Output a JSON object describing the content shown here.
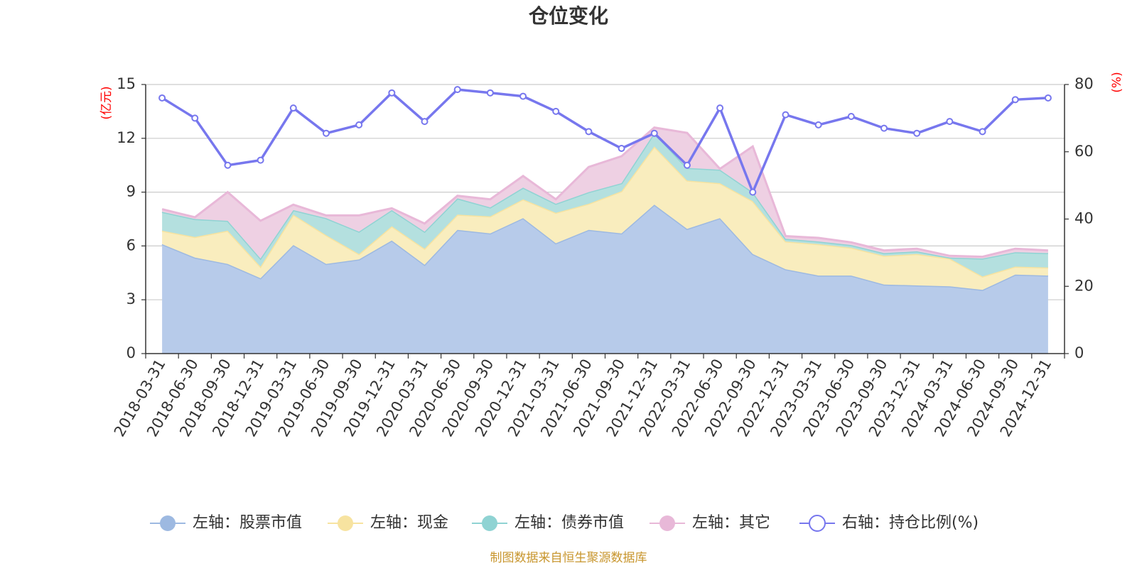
{
  "chart_data": {
    "type": "area",
    "title": "仓位变化",
    "left_axis_unit": "(亿元)",
    "right_axis_unit": "(%)",
    "left_ylim": [
      0,
      15
    ],
    "left_ticks": [
      0,
      3,
      6,
      9,
      12,
      15
    ],
    "right_ylim": [
      0,
      80
    ],
    "right_ticks": [
      0,
      20,
      40,
      60,
      80
    ],
    "categories": [
      "2018-03-31",
      "2018-06-30",
      "2018-09-30",
      "2018-12-31",
      "2019-03-31",
      "2019-06-30",
      "2019-09-30",
      "2019-12-31",
      "2020-03-31",
      "2020-06-30",
      "2020-09-30",
      "2020-12-31",
      "2021-03-31",
      "2021-06-30",
      "2021-09-30",
      "2021-12-31",
      "2022-03-31",
      "2022-06-30",
      "2022-09-30",
      "2022-12-31",
      "2023-03-31",
      "2023-06-30",
      "2023-09-30",
      "2023-12-31",
      "2024-03-31",
      "2024-06-30",
      "2024-09-30",
      "2024-12-31"
    ],
    "stacked_series": [
      {
        "name": "左轴：股票市值",
        "color": "#9db9e1",
        "fill": "#b7cbea",
        "values": [
          6.1,
          5.35,
          5.0,
          4.2,
          6.05,
          5.0,
          5.25,
          6.3,
          4.95,
          6.9,
          6.7,
          7.55,
          6.15,
          6.9,
          6.7,
          8.3,
          6.95,
          7.55,
          5.55,
          4.7,
          4.35,
          4.35,
          3.85,
          3.8,
          3.75,
          3.55,
          4.4,
          4.35
        ]
      },
      {
        "name": "左轴：现金",
        "color": "#f7e3a0",
        "fill": "#f9edbe",
        "values": [
          0.75,
          1.15,
          1.85,
          0.65,
          1.7,
          1.6,
          0.3,
          0.8,
          0.9,
          0.85,
          0.95,
          1.05,
          1.7,
          1.45,
          2.35,
          3.25,
          2.7,
          1.95,
          2.95,
          1.55,
          1.75,
          1.55,
          1.6,
          1.75,
          1.55,
          0.75,
          0.45,
          0.45
        ]
      },
      {
        "name": "左轴：债券市值",
        "color": "#8fd3d3",
        "fill": "#b4e0df",
        "values": [
          1.05,
          1.0,
          0.55,
          0.45,
          0.25,
          0.95,
          1.25,
          0.9,
          0.95,
          0.9,
          0.5,
          0.65,
          0.5,
          0.65,
          0.45,
          0.75,
          0.7,
          0.75,
          0.5,
          0.15,
          0.15,
          0.15,
          0.15,
          0.15,
          0.05,
          1.0,
          0.8,
          0.8
        ]
      },
      {
        "name": "左轴：其它",
        "color": "#e8b8d8",
        "fill": "#eed0e3",
        "values": [
          0.15,
          0.1,
          1.6,
          2.1,
          0.3,
          0.15,
          0.9,
          0.1,
          0.45,
          0.15,
          0.45,
          0.65,
          0.25,
          1.4,
          1.5,
          0.3,
          1.95,
          0.05,
          2.55,
          0.15,
          0.2,
          0.15,
          0.15,
          0.15,
          0.1,
          0.1,
          0.2,
          0.15
        ]
      }
    ],
    "line_series": {
      "name": "右轴：持仓比例(%)",
      "color": "#7777ee",
      "values": [
        76,
        70,
        56,
        57.5,
        73,
        65.5,
        68,
        77.5,
        69,
        78.5,
        77.5,
        76.5,
        72,
        66,
        61,
        65.5,
        56,
        73,
        48,
        71,
        68,
        70.5,
        67,
        65.5,
        69,
        66,
        75.5,
        76
      ]
    }
  },
  "source_note": "制图数据来自恒生聚源数据库"
}
